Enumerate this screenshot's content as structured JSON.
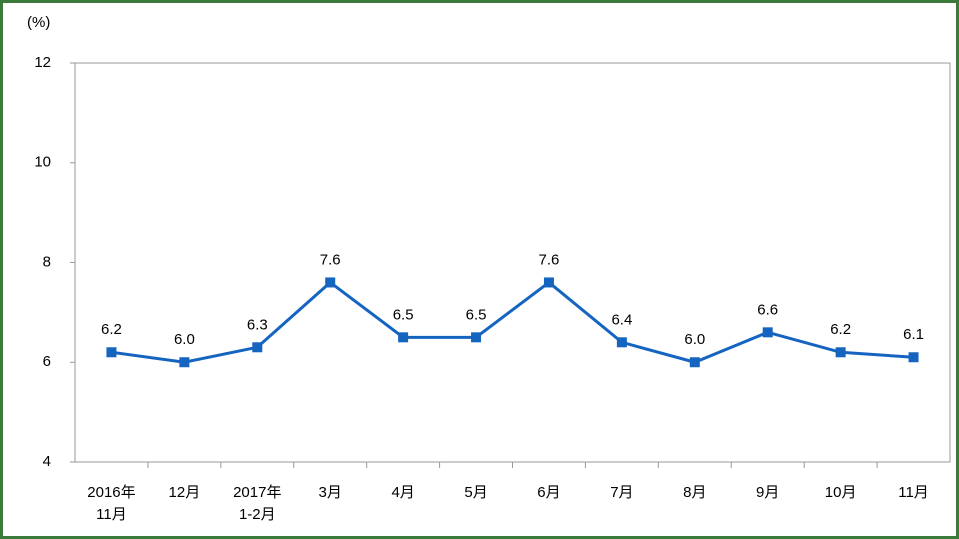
{
  "chart_data": {
    "type": "line",
    "y_label": "(%)",
    "categories": [
      "2016年\n11月",
      "12月",
      "2017年\n1-2月",
      "3月",
      "4月",
      "5月",
      "6月",
      "7月",
      "8月",
      "9月",
      "10月",
      "11月"
    ],
    "series": [
      {
        "color": "#1565c0",
        "values": [
          6.2,
          6.0,
          6.3,
          7.6,
          6.5,
          6.5,
          7.6,
          6.4,
          6.0,
          6.6,
          6.2,
          6.1
        ],
        "value_labels": [
          "6.2",
          "6.0",
          "6.3",
          "7.6",
          "6.5",
          "6.5",
          "7.6",
          "6.4",
          "6.0",
          "6.6",
          "6.2",
          "6.1"
        ]
      }
    ],
    "ylim": [
      4,
      12
    ],
    "yticks": [
      4,
      6,
      8,
      10,
      12
    ],
    "grid": false
  }
}
